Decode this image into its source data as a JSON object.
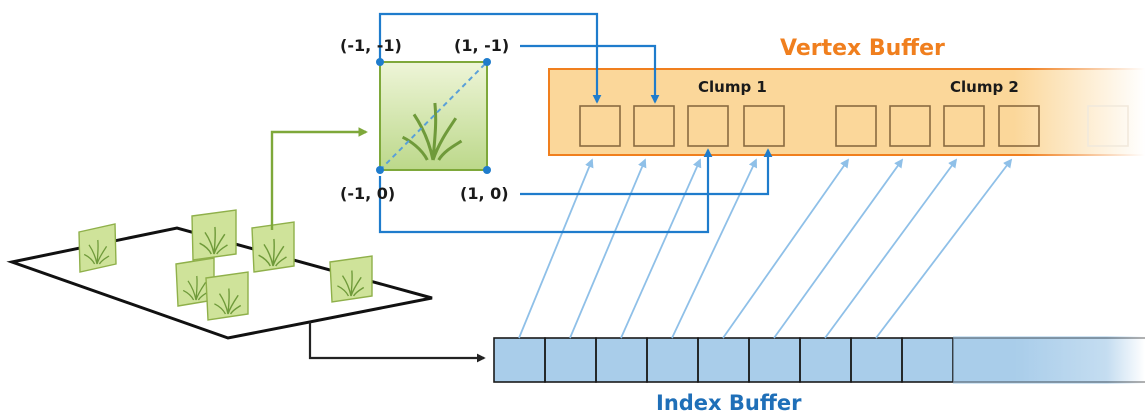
{
  "diagram": {
    "vertex_buffer_title": "Vertex Buffer",
    "index_buffer_title": "Index Buffer",
    "clump_1_label": "Clump 1",
    "clump_2_label": "Clump 2",
    "corner_top_left": "(-1, -1)",
    "corner_top_right": "(1, -1)",
    "corner_bottom_left": "(-1, 0)",
    "corner_bottom_right": "(1, 0)",
    "colors": {
      "vertex_buffer_fill": "#fbd79a",
      "vertex_buffer_border": "#f07f1e",
      "vertex_buffer_title": "#f07f1e",
      "index_buffer_fill": "#a9cdea",
      "index_buffer_title": "#1f6fb8",
      "arrow_blue": "#1f7ccc",
      "arrow_light_blue": "#8fc0e8",
      "arrow_green": "#7ea83a",
      "quad_green": "#cfe39a"
    }
  }
}
